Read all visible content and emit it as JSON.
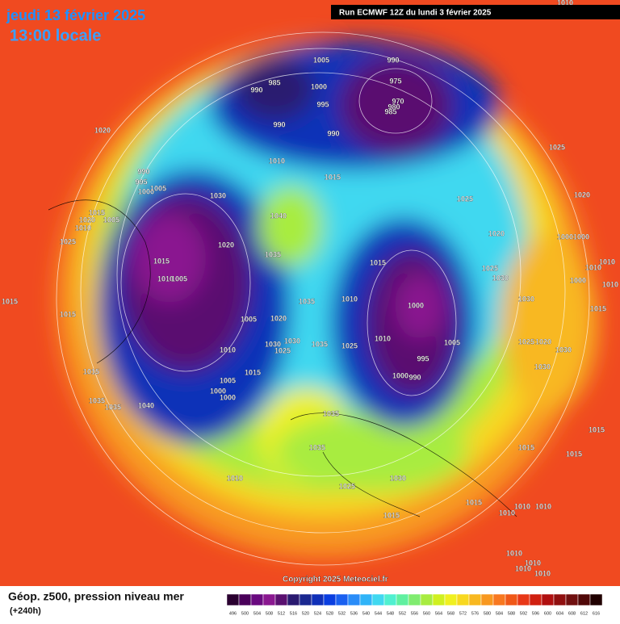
{
  "header": {
    "date": "jeudi 13 février 2025",
    "time": "13:00 locale",
    "run": "Run ECMWF 12Z du lundi 3 février 2025"
  },
  "footer": {
    "copyright": "Copyright 2025 Meteociel.fr",
    "product": "Géop. z500, pression niveau mer",
    "lead": "(+240h)"
  },
  "scale": {
    "labels": [
      496,
      500,
      504,
      508,
      512,
      516,
      520,
      524,
      528,
      532,
      536,
      540,
      544,
      548,
      552,
      556,
      560,
      564,
      568,
      572,
      576,
      580,
      584,
      588,
      592,
      596,
      600,
      604,
      608,
      612,
      616
    ],
    "colors": [
      "#2a0030",
      "#4a005a",
      "#6a0a80",
      "#8a1890",
      "#5a1070",
      "#2a1a70",
      "#1a2890",
      "#1030b8",
      "#0a3ee0",
      "#1a60f0",
      "#2a8cf8",
      "#30b4f8",
      "#40d8f0",
      "#50f0d0",
      "#60f0a0",
      "#80ec70",
      "#a8ec40",
      "#d0f020",
      "#f0f020",
      "#f8d820",
      "#f8b820",
      "#f89820",
      "#f87820",
      "#f05818",
      "#e83818",
      "#d02010",
      "#b01010",
      "#901010",
      "#701010",
      "#500808",
      "#200000"
    ]
  },
  "isobar_labels": [
    1020,
    990,
    995,
    1000,
    1005,
    1015,
    1005,
    1020,
    1010,
    1025,
    1015,
    1015,
    1015,
    1035,
    1035,
    1040,
    1030,
    1020,
    1015,
    1010,
    1005,
    1035,
    1040,
    1005,
    1010,
    1005,
    1000,
    1000,
    1015,
    1030,
    1025,
    1020,
    1035,
    1030,
    1035,
    1010,
    1035,
    1035,
    1025,
    1030,
    1015,
    1015,
    990,
    985,
    1005,
    1000,
    995,
    990,
    990,
    1010,
    1015,
    990,
    975,
    970,
    980,
    985,
    1025,
    1020,
    1025,
    1030,
    1015,
    1010,
    1000,
    1010,
    1025,
    1005,
    995,
    1000,
    990,
    1030,
    1025,
    1020,
    1030,
    1030,
    1025,
    1020,
    1000,
    1000,
    1010,
    1010,
    1000,
    1010,
    1015,
    1015,
    1015,
    1015,
    1010,
    1010,
    1010,
    1010,
    1010,
    1010,
    1010,
    1010
  ]
}
